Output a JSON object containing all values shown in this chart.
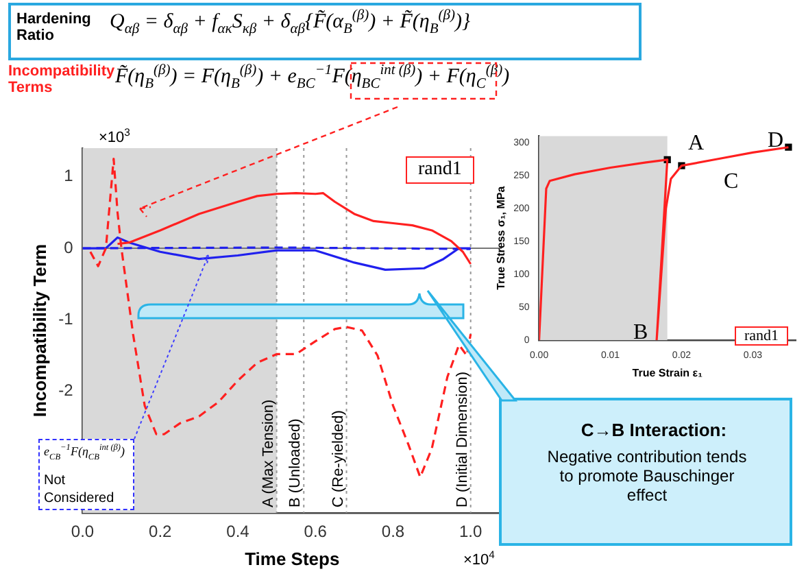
{
  "chart_data": [
    {
      "type": "line",
      "xlabel": "Time Steps",
      "ylabel": "Incompatibility Term",
      "xlim": [
        0,
        1.08
      ],
      "xticks": [
        {
          "value": 0,
          "label": "0.0"
        },
        0.2,
        0.4,
        0.6,
        0.8,
        {
          "value": 1,
          "label": "1.0"
        }
      ],
      "ylim": [
        -3.7,
        1.4
      ],
      "yticks": [
        -2,
        -1,
        0,
        1
      ],
      "series": [
        {
          "color": "#ff2020",
          "line_style": "solid",
          "x": [
            0.09,
            0.12,
            0.2,
            0.3,
            0.4,
            0.45,
            0.5,
            0.55,
            0.6,
            0.62,
            0.65,
            0.7,
            0.75,
            0.8,
            0.85,
            0.9,
            0.95,
            0.98,
            1.0
          ],
          "values": [
            0.06,
            0.08,
            0.25,
            0.48,
            0.65,
            0.73,
            0.76,
            0.77,
            0.76,
            0.77,
            0.65,
            0.48,
            0.38,
            0.35,
            0.32,
            0.25,
            0.1,
            -0.05,
            -0.22
          ]
        },
        {
          "color": "#ff2020",
          "line_style": "dashed",
          "x": [
            0.02,
            0.04,
            0.06,
            0.08,
            0.09,
            0.1,
            0.13,
            0.16,
            0.19,
            0.21,
            0.25,
            0.3,
            0.35,
            0.4,
            0.45,
            0.5,
            0.55,
            0.6,
            0.65,
            0.68,
            0.72,
            0.76,
            0.8,
            0.84,
            0.87,
            0.9,
            0.94,
            0.97,
            0.99,
            1.0
          ],
          "values": [
            -0.05,
            -0.25,
            0,
            1.25,
            0.5,
            0,
            -1.2,
            -2.2,
            -2.6,
            -2.6,
            -2.45,
            -2.35,
            -2.15,
            -1.85,
            -1.6,
            -1.48,
            -1.48,
            -1.3,
            -1.13,
            -1.1,
            -1.15,
            -1.5,
            -2.2,
            -2.75,
            -3.2,
            -2.8,
            -1.8,
            -1.35,
            -1.5,
            -1.2
          ]
        },
        {
          "color": "#2020ee",
          "line_style": "solid",
          "x": [
            0,
            0.06,
            0.09,
            0.12,
            0.2,
            0.3,
            0.4,
            0.5,
            0.6,
            0.7,
            0.78,
            0.88,
            0.93,
            0.97,
            1.0
          ],
          "values": [
            0,
            0,
            0.15,
            0.08,
            -0.05,
            -0.15,
            -0.1,
            -0.03,
            -0.03,
            -0.2,
            -0.3,
            -0.28,
            -0.15,
            0,
            0
          ]
        },
        {
          "color": "#2020ee",
          "line_style": "dashed",
          "x": [
            0,
            0.5,
            1.0
          ],
          "values": [
            0,
            0.01,
            -0.01
          ]
        }
      ],
      "bands": [
        {
          "axis": "x",
          "from": 0,
          "to": 0.5,
          "color": "#d9d9d9"
        }
      ],
      "ref_lines": [
        {
          "axis": "y",
          "value": 0,
          "color": "#777777",
          "line_style": "solid"
        },
        {
          "axis": "x",
          "value": 0.5,
          "label": "A (Max Tension)",
          "color": "#999999",
          "line_style": "dotted"
        },
        {
          "axis": "x",
          "value": 0.57,
          "label": "B (Unloaded)",
          "color": "#999999",
          "line_style": "dotted"
        },
        {
          "axis": "x",
          "value": 0.68,
          "label": "C (Re-yielded)",
          "color": "#999999",
          "line_style": "dotted"
        },
        {
          "axis": "x",
          "value": 1.0,
          "label": "D (Initial Dimension)",
          "color": "#999999",
          "line_style": "dotted"
        }
      ],
      "annotations": [
        "Hardening Ratio",
        "Q$_{αβ}$ = δ$_{αβ}$ + f$_{ακ}$S$_{κβ}$ + δ$_{αβ}${F̃(α$_{B}$$^{(β)}$) + F̃(η$_{B}$$^{(β)}$)}",
        "Incompatibility Terms",
        "F̃(η$_{B}$$^{(β)}$) = F(η$_{B}$$^{(β)}$) + e$_{BC}$$^{−1}$F(η$_{BC}$$^{int (β)}$) + F(η$_{C}$$^{(β)}$)",
        "rand1",
        "×10$^{3}$",
        "×10$^{4}$",
        "e$_{CB}$$^{−1}$F(η$_{CB}$$^{int (β)}$)",
        "Not Considered",
        "C→B Interaction:",
        "Negative contribution tends to promote Bauschinger effect"
      ]
    },
    {
      "type": "line",
      "xlabel": "True Strain ε₁",
      "ylabel": "True Stress σ₁, MPa",
      "xlim": [
        0,
        0.036
      ],
      "xticks": [
        {
          "value": 0,
          "label": "0.00"
        },
        {
          "value": 0.01,
          "label": "0.01"
        },
        {
          "value": 0.02,
          "label": "0.02"
        },
        {
          "value": 0.03,
          "label": "0.03"
        }
      ],
      "ylim": [
        0,
        310
      ],
      "yticks": [
        0,
        50,
        100,
        150,
        200,
        250,
        300
      ],
      "series": [
        {
          "color": "#ff2020",
          "x": [
            0,
            0.001,
            0.0015,
            0.005,
            0.01,
            0.015,
            0.018,
            0.0165,
            0.0178,
            0.0185,
            0.02,
            0.025,
            0.03,
            0.035
          ],
          "values": [
            0,
            230,
            242,
            252,
            262,
            270,
            274,
            0,
            200,
            245,
            265,
            275,
            285,
            293
          ]
        },
        {
          "type": "scatter",
          "color": "#000000",
          "marker": "square",
          "x": [
            0.018,
            0.02,
            0.035
          ],
          "values": [
            274,
            265,
            293
          ]
        }
      ],
      "bands": [
        {
          "axis": "x",
          "from": 0,
          "to": 0.018,
          "color": "#d9d9d9"
        }
      ],
      "annotations": [
        "A",
        "B",
        "C",
        "D",
        "rand1"
      ]
    }
  ]
}
